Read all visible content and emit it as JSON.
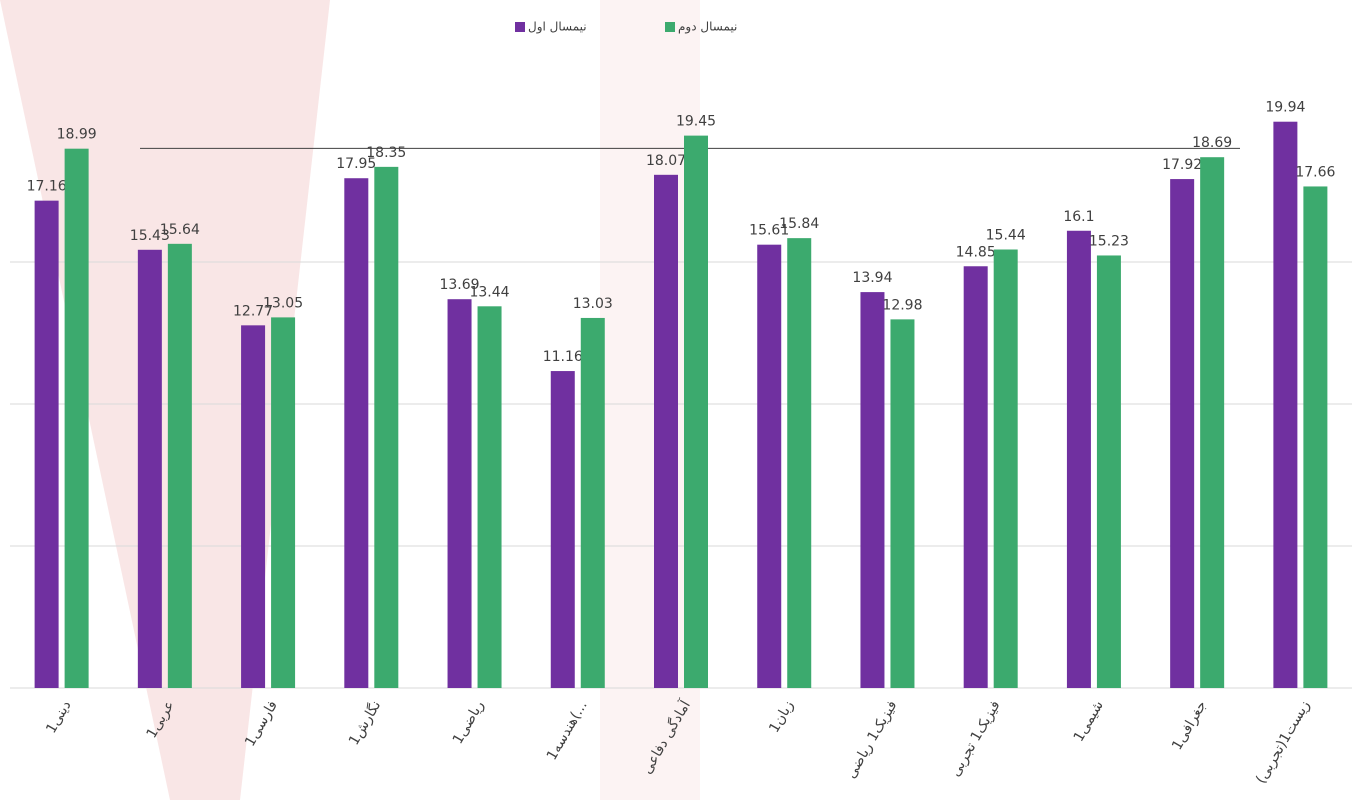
{
  "chart_data": {
    "type": "bar",
    "categories": [
      "دینی1",
      "عربی1",
      "فارسی1",
      "نگارش1",
      "ریاضی1",
      "هندسه1(...",
      "آمادگی دفاعی",
      "زبان1",
      "فیزیک1 ریاضی",
      "فیزیک1 تجربی",
      "شیمی1",
      "جغرافی1",
      "زیست1(تجربی)"
    ],
    "series": [
      {
        "name": "نیمسال اول",
        "color": "#7030a0",
        "values": [
          17.16,
          15.43,
          12.77,
          17.95,
          13.69,
          11.16,
          18.07,
          15.61,
          13.94,
          14.85,
          16.1,
          17.92,
          19.94
        ]
      },
      {
        "name": "نیمسال دوم",
        "color": "#3caa6e",
        "values": [
          18.99,
          15.64,
          13.05,
          18.35,
          13.44,
          13.03,
          19.45,
          15.84,
          12.98,
          15.44,
          15.23,
          18.69,
          17.66
        ]
      }
    ],
    "ylim": [
      0,
      20
    ],
    "yticks": [
      0,
      5,
      10,
      15
    ],
    "grid": true,
    "reference_line": 19
  }
}
